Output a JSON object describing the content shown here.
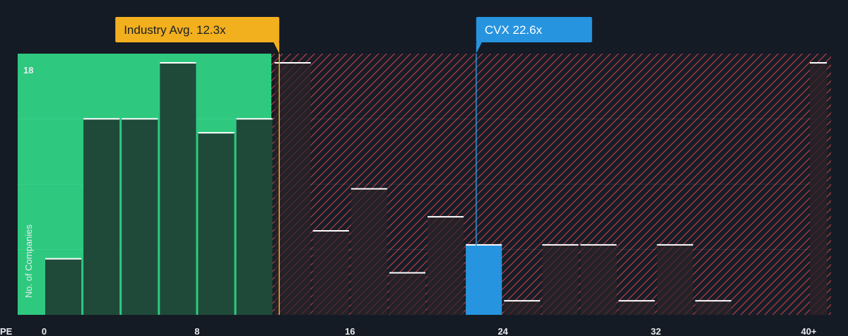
{
  "chart_data": {
    "type": "bar",
    "xlabel": "PE",
    "ylabel": "No. of Companies",
    "y_tick_label": "18",
    "ylim": [
      0,
      18
    ],
    "x_ticks": [
      {
        "value": 0,
        "label": "0"
      },
      {
        "value": 8,
        "label": "8"
      },
      {
        "value": 16,
        "label": "16"
      },
      {
        "value": 24,
        "label": "24"
      },
      {
        "value": 32,
        "label": "32"
      },
      {
        "value": 40,
        "label": "40+"
      }
    ],
    "bins": [
      {
        "x0": 0,
        "x1": 2,
        "value": 4
      },
      {
        "x0": 2,
        "x1": 4,
        "value": 14
      },
      {
        "x0": 4,
        "x1": 6,
        "value": 14
      },
      {
        "x0": 6,
        "x1": 8,
        "value": 18
      },
      {
        "x0": 8,
        "x1": 10,
        "value": 13
      },
      {
        "x0": 10,
        "x1": 12,
        "value": 14
      },
      {
        "x0": 12,
        "x1": 14,
        "value": 18
      },
      {
        "x0": 14,
        "x1": 16,
        "value": 6
      },
      {
        "x0": 16,
        "x1": 18,
        "value": 9
      },
      {
        "x0": 18,
        "x1": 20,
        "value": 3
      },
      {
        "x0": 20,
        "x1": 22,
        "value": 7
      },
      {
        "x0": 22,
        "x1": 24,
        "value": 5,
        "highlight": true
      },
      {
        "x0": 24,
        "x1": 26,
        "value": 1
      },
      {
        "x0": 26,
        "x1": 28,
        "value": 5
      },
      {
        "x0": 28,
        "x1": 30,
        "value": 5
      },
      {
        "x0": 30,
        "x1": 32,
        "value": 1
      },
      {
        "x0": 32,
        "x1": 34,
        "value": 5
      },
      {
        "x0": 34,
        "x1": 36,
        "value": 1
      },
      {
        "x0": 36,
        "x1": 38,
        "value": 0
      },
      {
        "x0": 38,
        "x1": 40,
        "value": 0
      },
      {
        "x0": 40,
        "x1": 41,
        "value": 18
      }
    ],
    "industry_avg": {
      "value": 12.3,
      "label": "Industry Avg. 12.3x"
    },
    "company": {
      "value": 22.6,
      "label": "CVX 22.6x"
    },
    "fair_zone_end": 11.9,
    "grid": true
  },
  "colors": {
    "background": "#151b24",
    "good_zone": "#2ec97f",
    "good_bar": "#1f4a3a",
    "bad_bar": "#2a2228",
    "hatch": "#c5404a",
    "highlight_bar": "#2794e0",
    "industry_callout": "#f2b01e",
    "company_callout": "#2794e0",
    "cap_line": "#ffffff",
    "text": "#e8ebef"
  }
}
